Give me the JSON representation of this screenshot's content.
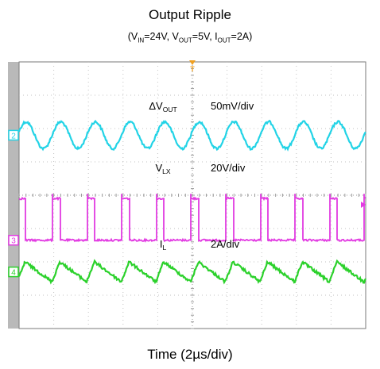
{
  "chart_data": {
    "type": "line",
    "title": "Output Ripple",
    "subtitle": {
      "open": "(V",
      "vin_sub": "IN",
      "vin_val": "=24V, V",
      "vout_sub": "OUT",
      "vout_val": "=5V, I",
      "iout_sub": "OUT",
      "iout_val": "=2A)"
    },
    "xlabel": "Time (2µs/div)",
    "x_divisions": 10,
    "y_divisions": 8,
    "grid": true,
    "trigger_marker": "T",
    "series": [
      {
        "channel": "2",
        "label_main": "ΔV",
        "label_sub": "OUT",
        "scale": "50mV/div",
        "waveform": "sine",
        "cycles": 10,
        "amplitude_div": 0.4,
        "center_div": 2.2,
        "color": "#22d3e6"
      },
      {
        "channel": "3",
        "label_main": "V",
        "label_sub": "LX",
        "scale": "20V/div",
        "waveform": "pulse",
        "cycles": 10,
        "duty": 0.22,
        "high_div": 4.1,
        "low_div": 5.35,
        "color": "#e23be2"
      },
      {
        "channel": "4",
        "label_main": "I",
        "label_sub": "L",
        "scale": "2A/div",
        "waveform": "triangle",
        "cycles": 10,
        "duty": 0.22,
        "amplitude_div": 0.3,
        "center_div": 6.3,
        "color": "#2bd12b"
      }
    ]
  }
}
